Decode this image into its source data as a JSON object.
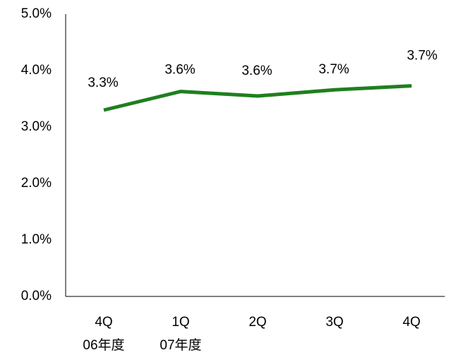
{
  "chart_data": {
    "type": "line",
    "categories": [
      "4Q",
      "1Q",
      "2Q",
      "3Q",
      "4Q"
    ],
    "category_sublabels": [
      "06年度",
      "07年度",
      "",
      "",
      ""
    ],
    "series": [
      {
        "values": [
          3.3,
          3.63,
          3.55,
          3.66,
          3.73
        ],
        "labels": [
          "3.3%",
          "3.6%",
          "3.6%",
          "3.7%",
          "3.7%"
        ],
        "color": "#1f7f1f"
      }
    ],
    "y_ticks": [
      "0.0%",
      "1.0%",
      "2.0%",
      "3.0%",
      "4.0%",
      "5.0%"
    ],
    "ylim": [
      0,
      5
    ],
    "xlabel": "",
    "ylabel": "",
    "title": "",
    "grid": false,
    "legend": "none"
  }
}
